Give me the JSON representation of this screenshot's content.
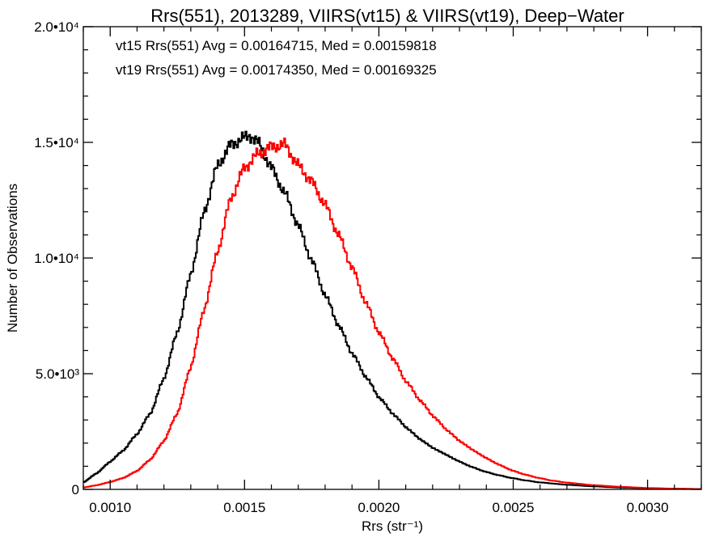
{
  "chart_data": {
    "type": "histogram-step",
    "title": "Rrs(551), 2013289, VIIRS(vt15) & VIIRS(vt19), Deep−Water",
    "xlabel": "Rrs (str⁻¹)",
    "ylabel": "Number of Observations",
    "xlim": [
      0.0009,
      0.0032
    ],
    "ylim": [
      0,
      20000
    ],
    "x_ticks": [
      {
        "value": 0.001,
        "label": "0.0010"
      },
      {
        "value": 0.0015,
        "label": "0.0015"
      },
      {
        "value": 0.002,
        "label": "0.0020"
      },
      {
        "value": 0.0025,
        "label": "0.0025"
      },
      {
        "value": 0.003,
        "label": "0.0030"
      }
    ],
    "y_ticks": [
      {
        "value": 0,
        "label": "0"
      },
      {
        "value": 5000,
        "label": "5.0•10³"
      },
      {
        "value": 10000,
        "label": "1.0•10⁴"
      },
      {
        "value": 15000,
        "label": "1.5•10⁴"
      },
      {
        "value": 20000,
        "label": "2.0•10⁴"
      }
    ],
    "legend_entries": [
      {
        "text": "vt15 Rrs(551) Avg = 0.00164715, Med = 0.00159818",
        "color": "#000000"
      },
      {
        "text": "vt19 Rrs(551) Avg = 0.00174350, Med = 0.00169325",
        "color": "#ff0000"
      }
    ],
    "legend_position": "top-left",
    "series": [
      {
        "color": "#000000",
        "x": [
          0.0009,
          0.00095,
          0.001,
          0.00105,
          0.0011,
          0.00115,
          0.0012,
          0.00125,
          0.0013,
          0.00135,
          0.0014,
          0.00145,
          0.0015,
          0.00152,
          0.00155,
          0.0016,
          0.00165,
          0.0017,
          0.00175,
          0.0018,
          0.00185,
          0.0019,
          0.00195,
          0.002,
          0.00205,
          0.0021,
          0.00215,
          0.0022,
          0.00225,
          0.0023,
          0.00235,
          0.0024,
          0.00245,
          0.0025,
          0.00255,
          0.0026,
          0.0027,
          0.0028,
          0.0029,
          0.003,
          0.0031,
          0.0032
        ],
        "y": [
          300,
          700,
          1200,
          1700,
          2400,
          3300,
          4800,
          6800,
          9300,
          12000,
          14000,
          14900,
          15200,
          15300,
          15000,
          13900,
          12800,
          11400,
          9900,
          8400,
          7100,
          5900,
          4900,
          4000,
          3300,
          2700,
          2200,
          1800,
          1500,
          1200,
          950,
          750,
          600,
          480,
          380,
          300,
          200,
          130,
          80,
          50,
          30,
          15
        ]
      },
      {
        "color": "#ff0000",
        "x": [
          0.0009,
          0.00095,
          0.001,
          0.00105,
          0.0011,
          0.00115,
          0.0012,
          0.00125,
          0.0013,
          0.00135,
          0.0014,
          0.00145,
          0.0015,
          0.00155,
          0.0016,
          0.00165,
          0.0017,
          0.00175,
          0.0018,
          0.00185,
          0.0019,
          0.00195,
          0.002,
          0.00205,
          0.0021,
          0.00215,
          0.0022,
          0.00225,
          0.0023,
          0.00235,
          0.0024,
          0.00245,
          0.0025,
          0.00255,
          0.0026,
          0.00265,
          0.0027,
          0.0028,
          0.0029,
          0.003,
          0.0031,
          0.0032
        ],
        "y": [
          80,
          180,
          320,
          500,
          800,
          1300,
          2100,
          3300,
          5300,
          7800,
          10300,
          12600,
          13900,
          14500,
          14800,
          14900,
          14000,
          13300,
          12300,
          11000,
          9600,
          8100,
          6800,
          5700,
          4700,
          3900,
          3200,
          2600,
          2100,
          1700,
          1350,
          1050,
          800,
          620,
          480,
          370,
          290,
          180,
          110,
          60,
          30,
          15
        ]
      }
    ]
  }
}
